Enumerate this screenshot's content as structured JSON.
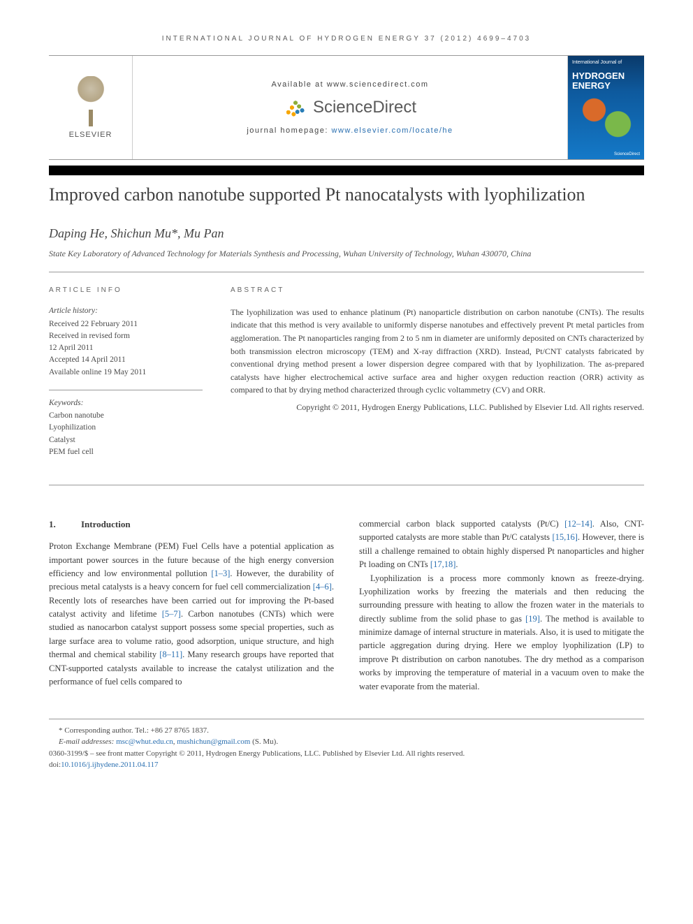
{
  "header": {
    "journal_line": "INTERNATIONAL JOURNAL OF HYDROGEN ENERGY 37 (2012) 4699–4703",
    "available_at": "Available at www.sciencedirect.com",
    "sciencedirect": "ScienceDirect",
    "homepage_prefix": "journal homepage: ",
    "homepage_url": "www.elsevier.com/locate/he",
    "elsevier_label": "ELSEVIER",
    "cover": {
      "small": "International Journal of",
      "big": "HYDROGEN ENERGY",
      "footer_left": "",
      "footer_right": "ScienceDirect"
    }
  },
  "title": "Improved carbon nanotube supported Pt nanocatalysts with lyophilization",
  "authors": "Daping He, Shichun Mu*, Mu Pan",
  "affiliation": "State Key Laboratory of Advanced Technology for Materials Synthesis and Processing, Wuhan University of Technology, Wuhan 430070, China",
  "article_info": {
    "heading": "ARTICLE INFO",
    "history_label": "Article history:",
    "history": [
      "Received 22 February 2011",
      "Received in revised form",
      "12 April 2011",
      "Accepted 14 April 2011",
      "Available online 19 May 2011"
    ],
    "keywords_label": "Keywords:",
    "keywords": [
      "Carbon nanotube",
      "Lyophilization",
      "Catalyst",
      "PEM fuel cell"
    ]
  },
  "abstract": {
    "heading": "ABSTRACT",
    "text": "The lyophilization was used to enhance platinum (Pt) nanoparticle distribution on carbon nanotube (CNTs). The results indicate that this method is very available to uniformly disperse nanotubes and effectively prevent Pt metal particles from agglomeration. The Pt nanoparticles ranging from 2 to 5 nm in diameter are uniformly deposited on CNTs characterized by both transmission electron microscopy (TEM) and X-ray diffraction (XRD). Instead, Pt/CNT catalysts fabricated by conventional drying method present a lower dispersion degree compared with that by lyophilization. The as-prepared catalysts have higher electrochemical active surface area and higher oxygen reduction reaction (ORR) activity as compared to that by drying method characterized through cyclic voltammetry (CV) and ORR.",
    "copyright": "Copyright © 2011, Hydrogen Energy Publications, LLC. Published by Elsevier Ltd. All rights reserved."
  },
  "section1": {
    "number": "1.",
    "title": "Introduction",
    "col_left": "Proton Exchange Membrane (PEM) Fuel Cells have a potential application as important power sources in the future because of the high energy conversion efficiency and low environmental pollution [1–3]. However, the durability of precious metal catalysts is a heavy concern for fuel cell commercialization [4–6]. Recently lots of researches have been carried out for improving the Pt-based catalyst activity and lifetime [5–7]. Carbon nanotubes (CNTs) which were studied as nanocarbon catalyst support possess some special properties, such as large surface area to volume ratio, good adsorption, unique structure, and high thermal and chemical stability [8–11]. Many research groups have reported that CNT-supported catalysts available to increase the catalyst utilization and the performance of fuel cells compared to",
    "col_right_p1": "commercial carbon black supported catalysts (Pt/C) [12–14]. Also, CNT-supported catalysts are more stable than Pt/C catalysts [15,16]. However, there is still a challenge remained to obtain highly dispersed Pt nanoparticles and higher Pt loading on CNTs [17,18].",
    "col_right_p2": "Lyophilization is a process more commonly known as freeze-drying. Lyophilization works by freezing the materials and then reducing the surrounding pressure with heating to allow the frozen water in the materials to directly sublime from the solid phase to gas [19]. The method is available to minimize damage of internal structure in materials. Also, it is used to mitigate the particle aggregation during drying. Here we employ lyophilization (LP) to improve Pt distribution on carbon nanotubes. The dry method as a comparison works by improving the temperature of material in a vacuum oven to make the water evaporate from the material."
  },
  "footnotes": {
    "corresponding": "* Corresponding author. Tel.: +86 27 8765 1837.",
    "email_label": "E-mail addresses: ",
    "email1": "msc@whut.edu.cn",
    "email_sep": ", ",
    "email2": "mushichun@gmail.com",
    "email_suffix": " (S. Mu).",
    "issn_line": "0360-3199/$ – see front matter Copyright © 2011, Hydrogen Energy Publications, LLC. Published by Elsevier Ltd. All rights reserved.",
    "doi_prefix": "doi:",
    "doi": "10.1016/j.ijhydene.2011.04.117"
  },
  "refs": {
    "r1_3": "[1–3]",
    "r4_6": "[4–6]",
    "r5_7": "[5–7]",
    "r8_11": "[8–11]",
    "r12_14": "[12–14]",
    "r15_16": "[15,16]",
    "r17_18": "[17,18]",
    "r19": "[19]"
  },
  "colors": {
    "link": "#2a6fb0",
    "text": "#3a3a3a",
    "rule": "#999999",
    "cover_bg_top": "#0a3a6b",
    "cover_bg_bottom": "#1479c8"
  }
}
